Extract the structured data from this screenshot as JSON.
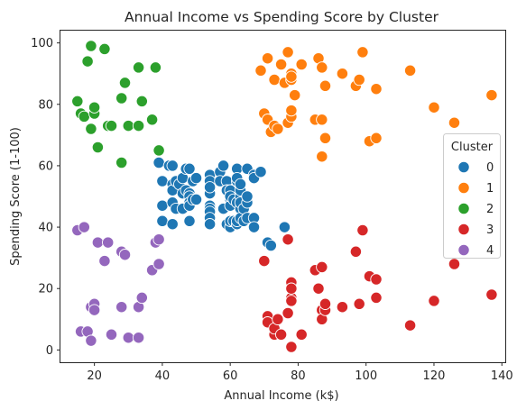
{
  "chart_data": {
    "type": "scatter",
    "title": "Annual Income vs Spending Score by Cluster",
    "xlabel": "Annual Income (k$)",
    "ylabel": "Spending Score (1-100)",
    "xlim": [
      10,
      141
    ],
    "ylim": [
      -4,
      104
    ],
    "xticks": [
      20,
      40,
      60,
      80,
      100,
      120,
      140
    ],
    "yticks": [
      0,
      20,
      40,
      60,
      80,
      100
    ],
    "grid": false,
    "legend": {
      "title": "Cluster",
      "placement": "center-right"
    },
    "series": [
      {
        "name": "0",
        "color": "#1f77b4",
        "points": [
          [
            39,
            61
          ],
          [
            40,
            55
          ],
          [
            40,
            47
          ],
          [
            40,
            42
          ],
          [
            42,
            60
          ],
          [
            43,
            60
          ],
          [
            43,
            54
          ],
          [
            43,
            52
          ],
          [
            43,
            48
          ],
          [
            43,
            41
          ],
          [
            44,
            46
          ],
          [
            44,
            55
          ],
          [
            45,
            54
          ],
          [
            46,
            51
          ],
          [
            46,
            46
          ],
          [
            46,
            56
          ],
          [
            47,
            52
          ],
          [
            47,
            59
          ],
          [
            48,
            59
          ],
          [
            48,
            51
          ],
          [
            48,
            50
          ],
          [
            48,
            48
          ],
          [
            48,
            42
          ],
          [
            48,
            47
          ],
          [
            49,
            55
          ],
          [
            49,
            49
          ],
          [
            50,
            56
          ],
          [
            50,
            49
          ],
          [
            54,
            57
          ],
          [
            54,
            55
          ],
          [
            54,
            51
          ],
          [
            54,
            53
          ],
          [
            54,
            47
          ],
          [
            54,
            46
          ],
          [
            54,
            45
          ],
          [
            54,
            43
          ],
          [
            54,
            41
          ],
          [
            57,
            58
          ],
          [
            57,
            55
          ],
          [
            58,
            60
          ],
          [
            58,
            46
          ],
          [
            59,
            55
          ],
          [
            59,
            52
          ],
          [
            59,
            41
          ],
          [
            60,
            49
          ],
          [
            60,
            40
          ],
          [
            60,
            42
          ],
          [
            60,
            52
          ],
          [
            60,
            47
          ],
          [
            60,
            50
          ],
          [
            61,
            42
          ],
          [
            61,
            49
          ],
          [
            62,
            41
          ],
          [
            62,
            48
          ],
          [
            62,
            59
          ],
          [
            62,
            55
          ],
          [
            62,
            56
          ],
          [
            62,
            42
          ],
          [
            63,
            50
          ],
          [
            63,
            46
          ],
          [
            63,
            43
          ],
          [
            63,
            48
          ],
          [
            63,
            52
          ],
          [
            63,
            54
          ],
          [
            64,
            42
          ],
          [
            64,
            46
          ],
          [
            65,
            48
          ],
          [
            65,
            50
          ],
          [
            65,
            43
          ],
          [
            65,
            59
          ],
          [
            67,
            43
          ],
          [
            67,
            57
          ],
          [
            67,
            56
          ],
          [
            67,
            40
          ],
          [
            69,
            58
          ],
          [
            71,
            35
          ],
          [
            72,
            34
          ],
          [
            76,
            40
          ]
        ]
      },
      {
        "name": "1",
        "color": "#ff7f0e",
        "points": [
          [
            69,
            91
          ],
          [
            70,
            77
          ],
          [
            71,
            95
          ],
          [
            71,
            75
          ],
          [
            71,
            75
          ],
          [
            72,
            71
          ],
          [
            73,
            88
          ],
          [
            73,
            73
          ],
          [
            74,
            72
          ],
          [
            75,
            93
          ],
          [
            76,
            87
          ],
          [
            77,
            97
          ],
          [
            77,
            74
          ],
          [
            78,
            90
          ],
          [
            78,
            88
          ],
          [
            78,
            76
          ],
          [
            78,
            89
          ],
          [
            78,
            78
          ],
          [
            79,
            83
          ],
          [
            81,
            93
          ],
          [
            85,
            75
          ],
          [
            86,
            95
          ],
          [
            87,
            63
          ],
          [
            87,
            75
          ],
          [
            87,
            92
          ],
          [
            88,
            86
          ],
          [
            88,
            69
          ],
          [
            93,
            90
          ],
          [
            97,
            86
          ],
          [
            98,
            88
          ],
          [
            99,
            97
          ],
          [
            101,
            68
          ],
          [
            103,
            85
          ],
          [
            103,
            69
          ],
          [
            113,
            91
          ],
          [
            120,
            79
          ],
          [
            126,
            74
          ],
          [
            137,
            83
          ]
        ]
      },
      {
        "name": "2",
        "color": "#2ca02c",
        "points": [
          [
            15,
            81
          ],
          [
            16,
            77
          ],
          [
            17,
            76
          ],
          [
            18,
            94
          ],
          [
            19,
            72
          ],
          [
            19,
            99
          ],
          [
            20,
            77
          ],
          [
            20,
            79
          ],
          [
            21,
            66
          ],
          [
            23,
            98
          ],
          [
            24,
            73
          ],
          [
            25,
            73
          ],
          [
            28,
            82
          ],
          [
            28,
            61
          ],
          [
            29,
            87
          ],
          [
            30,
            73
          ],
          [
            33,
            73
          ],
          [
            33,
            92
          ],
          [
            34,
            81
          ],
          [
            37,
            75
          ],
          [
            38,
            92
          ],
          [
            39,
            65
          ]
        ]
      },
      {
        "name": "3",
        "color": "#d62728",
        "points": [
          [
            70,
            29
          ],
          [
            71,
            11
          ],
          [
            71,
            9
          ],
          [
            73,
            5
          ],
          [
            73,
            7
          ],
          [
            74,
            10
          ],
          [
            75,
            5
          ],
          [
            77,
            12
          ],
          [
            77,
            36
          ],
          [
            78,
            22
          ],
          [
            78,
            17
          ],
          [
            78,
            20
          ],
          [
            78,
            16
          ],
          [
            78,
            1
          ],
          [
            81,
            5
          ],
          [
            85,
            26
          ],
          [
            86,
            20
          ],
          [
            87,
            27
          ],
          [
            87,
            13
          ],
          [
            87,
            10
          ],
          [
            88,
            13
          ],
          [
            88,
            15
          ],
          [
            93,
            14
          ],
          [
            97,
            32
          ],
          [
            98,
            15
          ],
          [
            99,
            39
          ],
          [
            101,
            24
          ],
          [
            103,
            17
          ],
          [
            103,
            23
          ],
          [
            113,
            8
          ],
          [
            120,
            16
          ],
          [
            126,
            28
          ],
          [
            137,
            18
          ]
        ]
      },
      {
        "name": "4",
        "color": "#9467bd",
        "points": [
          [
            15,
            39
          ],
          [
            16,
            6
          ],
          [
            17,
            40
          ],
          [
            18,
            6
          ],
          [
            19,
            3
          ],
          [
            19,
            14
          ],
          [
            20,
            15
          ],
          [
            20,
            13
          ],
          [
            21,
            35
          ],
          [
            23,
            29
          ],
          [
            24,
            35
          ],
          [
            25,
            5
          ],
          [
            28,
            14
          ],
          [
            28,
            32
          ],
          [
            29,
            31
          ],
          [
            30,
            4
          ],
          [
            33,
            4
          ],
          [
            33,
            14
          ],
          [
            34,
            17
          ],
          [
            37,
            26
          ],
          [
            38,
            35
          ],
          [
            39,
            36
          ],
          [
            39,
            28
          ]
        ]
      }
    ]
  }
}
